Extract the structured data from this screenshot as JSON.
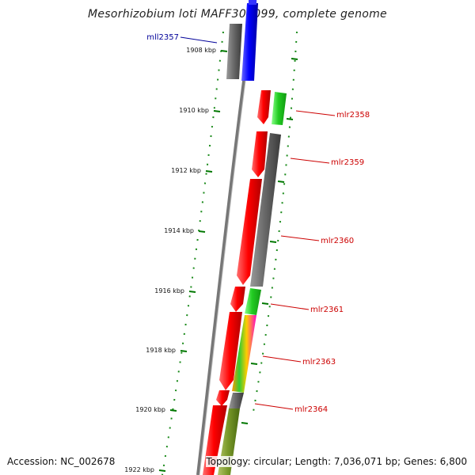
{
  "title": "Mesorhizobium loti MAFF303099, complete genome",
  "accession_text": "Accession: NC_002678",
  "summary_text": "Topology: circular; Length: 7,036,071 bp; Genes: 6,800",
  "colors": {
    "forward_label": "#cc0000",
    "reverse_label": "#000099",
    "tick": "#007700"
  },
  "ticks": [
    "1908 kbp",
    "1910 kbp",
    "1912 kbp",
    "1914 kbp",
    "1916 kbp",
    "1918 kbp",
    "1920 kbp",
    "1922 kbp"
  ],
  "genes": [
    {
      "name": "mll2357",
      "strand": "reverse"
    },
    {
      "name": "mlr2358",
      "strand": "forward"
    },
    {
      "name": "mlr2359",
      "strand": "forward"
    },
    {
      "name": "mlr2360",
      "strand": "forward"
    },
    {
      "name": "mlr2361",
      "strand": "forward"
    },
    {
      "name": "mlr2363",
      "strand": "forward"
    },
    {
      "name": "mlr2364",
      "strand": "forward"
    }
  ]
}
